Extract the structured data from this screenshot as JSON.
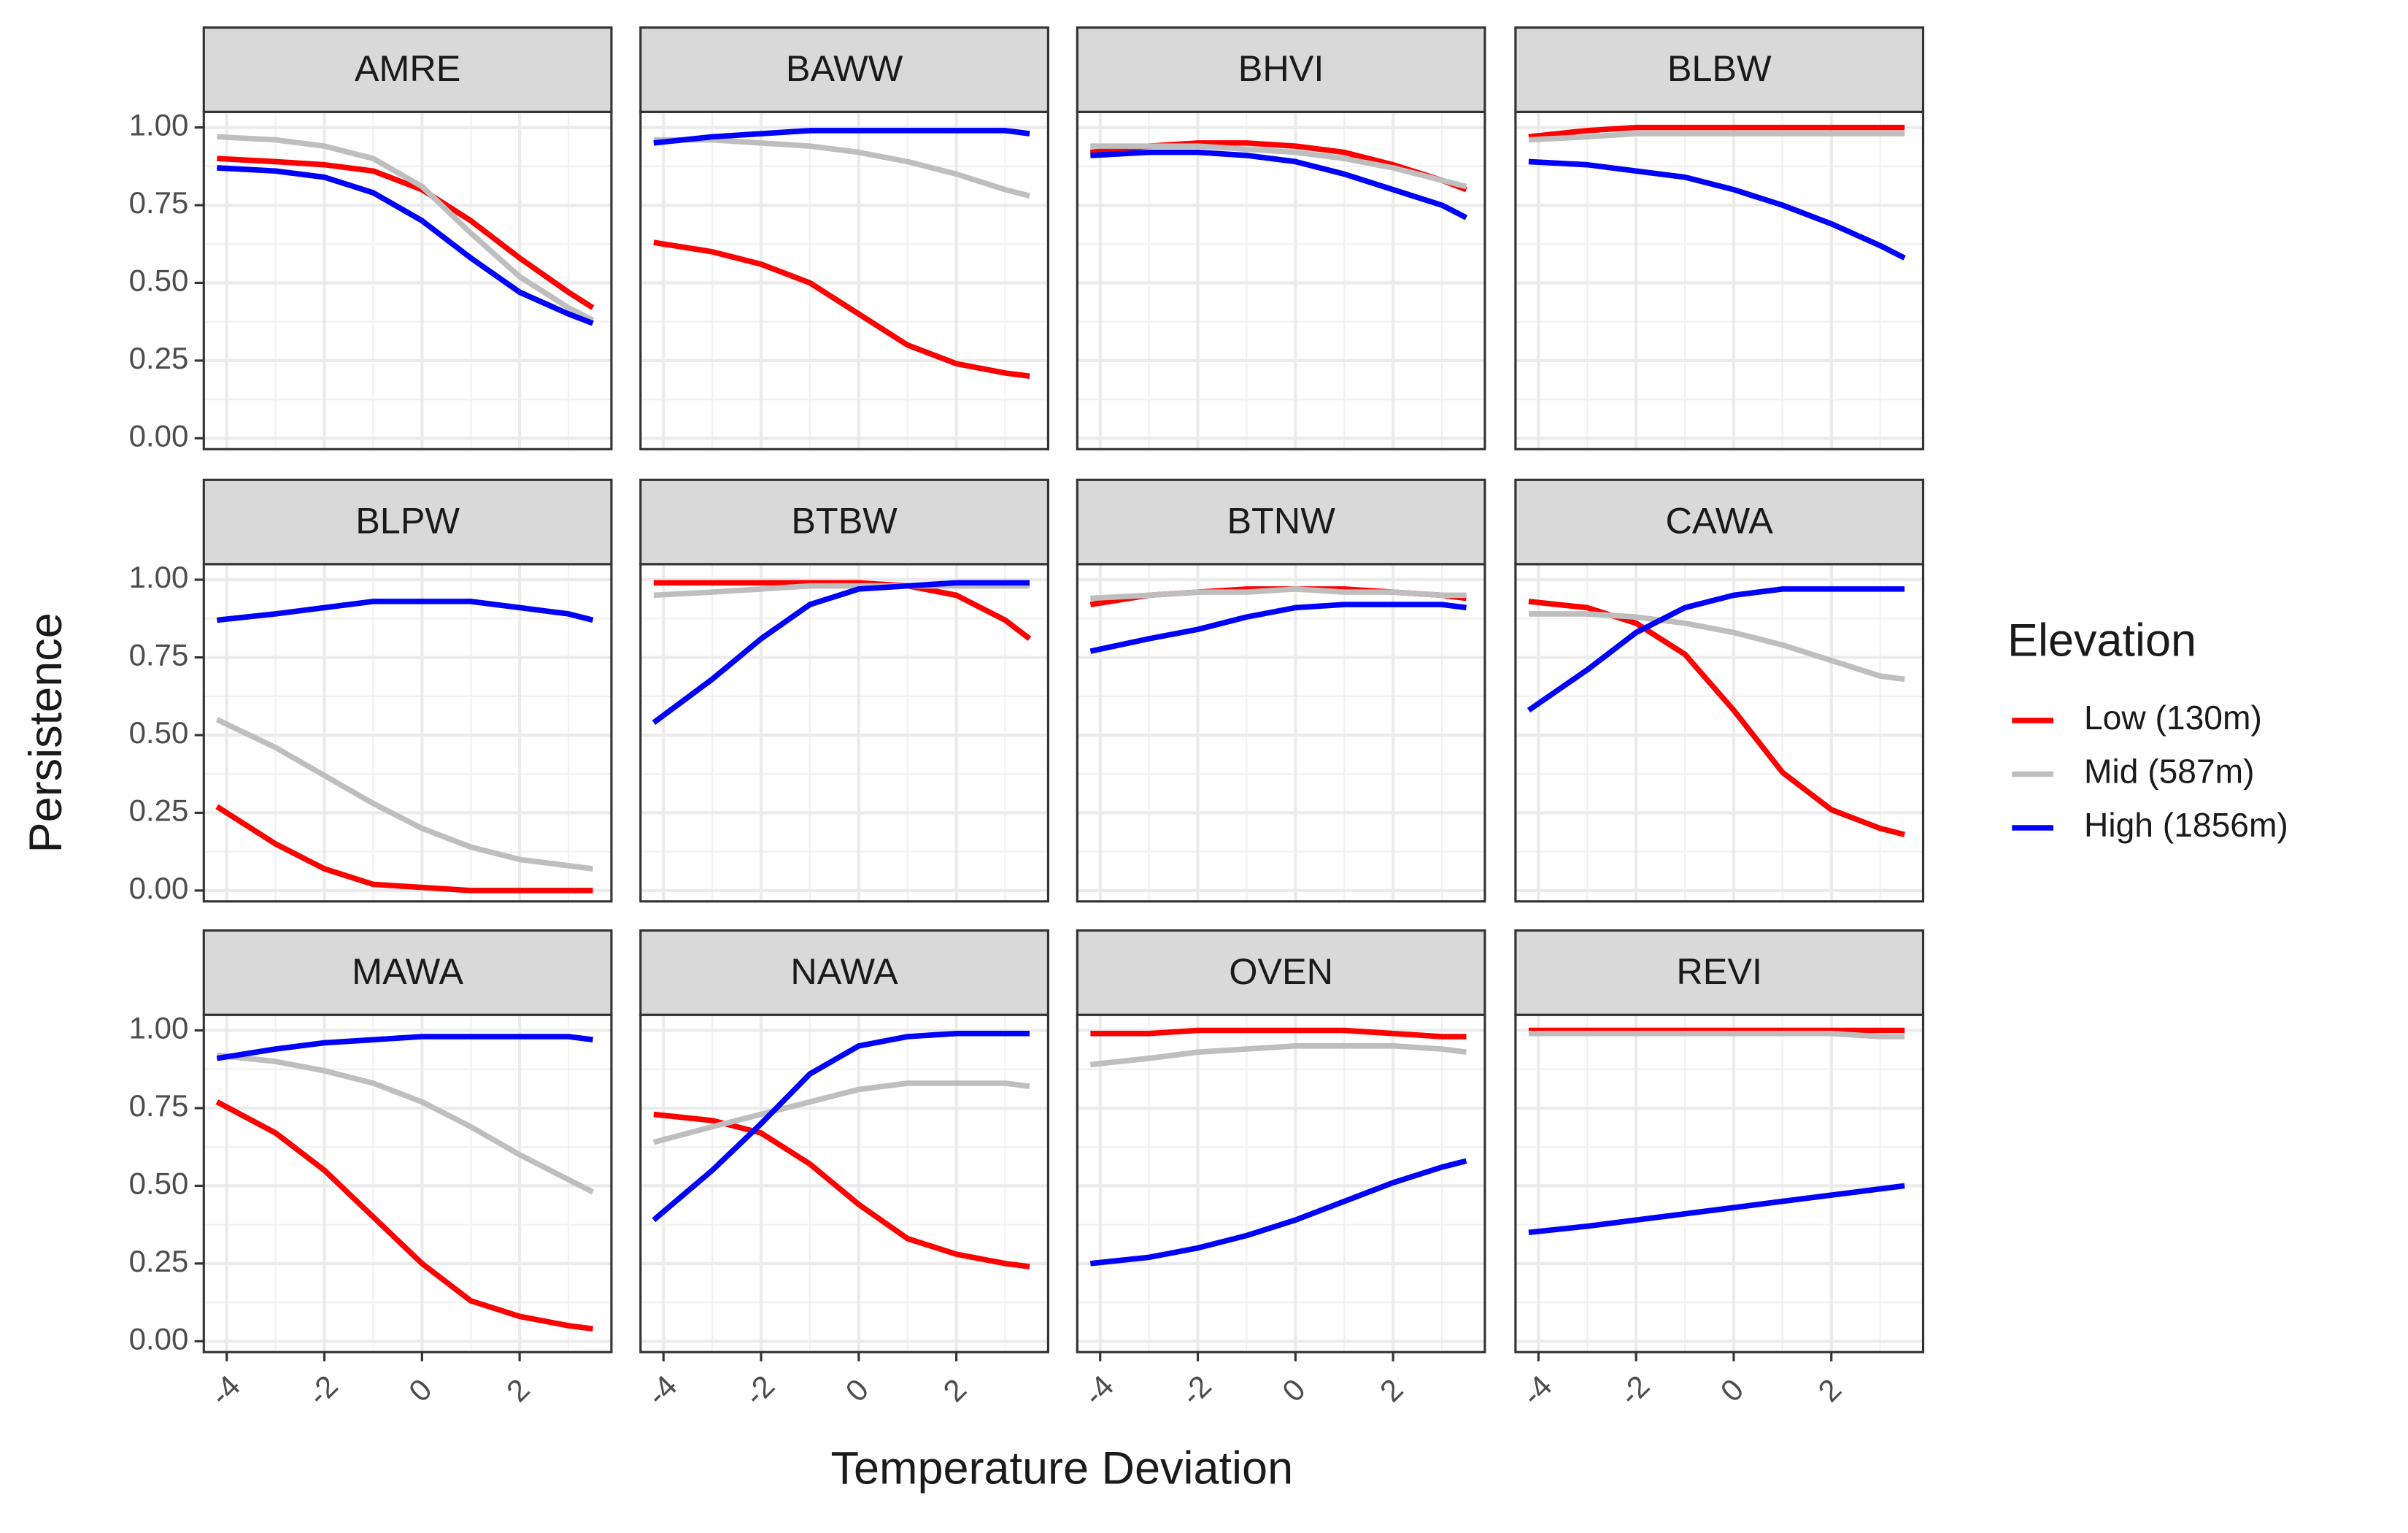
{
  "chart_data": {
    "type": "line",
    "x_label": "Temperature Deviation",
    "y_label": "Persistence",
    "legend_title": "Elevation",
    "legend_position": "right",
    "grid": true,
    "xlim": [
      -4.47,
      3.88
    ],
    "ylim": [
      -0.035,
      1.05
    ],
    "xticks": [
      -4,
      -2,
      0,
      2
    ],
    "yticks": [
      {
        "value": 0,
        "label": "0.00"
      },
      {
        "value": 0.25,
        "label": "0.25"
      },
      {
        "value": 0.5,
        "label": "0.50"
      },
      {
        "value": 0.75,
        "label": "0.75"
      },
      {
        "value": 1,
        "label": "1.00"
      }
    ],
    "series": [
      {
        "name": "Low (130m)",
        "color": "#ff0000"
      },
      {
        "name": "Mid (587m)",
        "color": "#bebebe"
      },
      {
        "name": "High (1856m)",
        "color": "#0000ff"
      }
    ],
    "x": [
      -4.2,
      -3,
      -2,
      -1,
      0,
      1,
      2,
      3,
      3.5
    ],
    "panels": [
      {
        "title": "AMRE",
        "series": [
          {
            "values": [
              0.9,
              0.89,
              0.88,
              0.86,
              0.8,
              0.7,
              0.58,
              0.47,
              0.42
            ]
          },
          {
            "values": [
              0.97,
              0.96,
              0.94,
              0.9,
              0.81,
              0.66,
              0.52,
              0.42,
              0.38
            ]
          },
          {
            "values": [
              0.87,
              0.86,
              0.84,
              0.79,
              0.7,
              0.58,
              0.47,
              0.4,
              0.37
            ]
          }
        ]
      },
      {
        "title": "BAWW",
        "series": [
          {
            "values": [
              0.63,
              0.6,
              0.56,
              0.5,
              0.4,
              0.3,
              0.24,
              0.21,
              0.2
            ]
          },
          {
            "values": [
              0.96,
              0.96,
              0.95,
              0.94,
              0.92,
              0.89,
              0.85,
              0.8,
              0.78
            ]
          },
          {
            "values": [
              0.95,
              0.97,
              0.98,
              0.99,
              0.99,
              0.99,
              0.99,
              0.99,
              0.98
            ]
          }
        ]
      },
      {
        "title": "BHVI",
        "series": [
          {
            "values": [
              0.92,
              0.94,
              0.95,
              0.95,
              0.94,
              0.92,
              0.88,
              0.83,
              0.8
            ]
          },
          {
            "values": [
              0.94,
              0.94,
              0.94,
              0.93,
              0.92,
              0.9,
              0.87,
              0.83,
              0.81
            ]
          },
          {
            "values": [
              0.91,
              0.92,
              0.92,
              0.91,
              0.89,
              0.85,
              0.8,
              0.75,
              0.71
            ]
          }
        ]
      },
      {
        "title": "BLBW",
        "series": [
          {
            "values": [
              0.97,
              0.99,
              1.0,
              1.0,
              1.0,
              1.0,
              1.0,
              1.0,
              1.0
            ]
          },
          {
            "values": [
              0.96,
              0.97,
              0.98,
              0.98,
              0.98,
              0.98,
              0.98,
              0.98,
              0.98
            ]
          },
          {
            "values": [
              0.89,
              0.88,
              0.86,
              0.84,
              0.8,
              0.75,
              0.69,
              0.62,
              0.58
            ]
          }
        ]
      },
      {
        "title": "BLPW",
        "series": [
          {
            "values": [
              0.27,
              0.15,
              0.07,
              0.02,
              0.01,
              0.0,
              0.0,
              0.0,
              0.0
            ]
          },
          {
            "values": [
              0.55,
              0.46,
              0.37,
              0.28,
              0.2,
              0.14,
              0.1,
              0.08,
              0.07
            ]
          },
          {
            "values": [
              0.87,
              0.89,
              0.91,
              0.93,
              0.93,
              0.93,
              0.91,
              0.89,
              0.87
            ]
          }
        ]
      },
      {
        "title": "BTBW",
        "series": [
          {
            "values": [
              0.99,
              0.99,
              0.99,
              0.99,
              0.99,
              0.98,
              0.95,
              0.87,
              0.81
            ]
          },
          {
            "values": [
              0.95,
              0.96,
              0.97,
              0.98,
              0.98,
              0.98,
              0.98,
              0.98,
              0.98
            ]
          },
          {
            "values": [
              0.54,
              0.68,
              0.81,
              0.92,
              0.97,
              0.98,
              0.99,
              0.99,
              0.99
            ]
          }
        ]
      },
      {
        "title": "BTNW",
        "series": [
          {
            "values": [
              0.92,
              0.95,
              0.96,
              0.97,
              0.97,
              0.97,
              0.96,
              0.95,
              0.94
            ]
          },
          {
            "values": [
              0.94,
              0.95,
              0.96,
              0.96,
              0.97,
              0.96,
              0.96,
              0.95,
              0.95
            ]
          },
          {
            "values": [
              0.77,
              0.81,
              0.84,
              0.88,
              0.91,
              0.92,
              0.92,
              0.92,
              0.91
            ]
          }
        ]
      },
      {
        "title": "CAWA",
        "series": [
          {
            "values": [
              0.93,
              0.91,
              0.86,
              0.76,
              0.58,
              0.38,
              0.26,
              0.2,
              0.18
            ]
          },
          {
            "values": [
              0.89,
              0.89,
              0.88,
              0.86,
              0.83,
              0.79,
              0.74,
              0.69,
              0.68
            ]
          },
          {
            "values": [
              0.58,
              0.71,
              0.83,
              0.91,
              0.95,
              0.97,
              0.97,
              0.97,
              0.97
            ]
          }
        ]
      },
      {
        "title": "MAWA",
        "series": [
          {
            "values": [
              0.77,
              0.67,
              0.55,
              0.4,
              0.25,
              0.13,
              0.08,
              0.05,
              0.04
            ]
          },
          {
            "values": [
              0.92,
              0.9,
              0.87,
              0.83,
              0.77,
              0.69,
              0.6,
              0.52,
              0.48
            ]
          },
          {
            "values": [
              0.91,
              0.94,
              0.96,
              0.97,
              0.98,
              0.98,
              0.98,
              0.98,
              0.97
            ]
          }
        ]
      },
      {
        "title": "NAWA",
        "series": [
          {
            "values": [
              0.73,
              0.71,
              0.67,
              0.57,
              0.44,
              0.33,
              0.28,
              0.25,
              0.24
            ]
          },
          {
            "values": [
              0.64,
              0.69,
              0.73,
              0.77,
              0.81,
              0.83,
              0.83,
              0.83,
              0.82
            ]
          },
          {
            "values": [
              0.39,
              0.55,
              0.7,
              0.86,
              0.95,
              0.98,
              0.99,
              0.99,
              0.99
            ]
          }
        ]
      },
      {
        "title": "OVEN",
        "series": [
          {
            "values": [
              0.99,
              0.99,
              1.0,
              1.0,
              1.0,
              1.0,
              0.99,
              0.98,
              0.98
            ]
          },
          {
            "values": [
              0.89,
              0.91,
              0.93,
              0.94,
              0.95,
              0.95,
              0.95,
              0.94,
              0.93
            ]
          },
          {
            "values": [
              0.25,
              0.27,
              0.3,
              0.34,
              0.39,
              0.45,
              0.51,
              0.56,
              0.58
            ]
          }
        ]
      },
      {
        "title": "REVI",
        "series": [
          {
            "values": [
              1.0,
              1.0,
              1.0,
              1.0,
              1.0,
              1.0,
              1.0,
              1.0,
              1.0
            ]
          },
          {
            "values": [
              0.99,
              0.99,
              0.99,
              0.99,
              0.99,
              0.99,
              0.99,
              0.98,
              0.98
            ]
          },
          {
            "values": [
              0.35,
              0.37,
              0.39,
              0.41,
              0.43,
              0.45,
              0.47,
              0.49,
              0.5
            ]
          }
        ]
      }
    ]
  }
}
